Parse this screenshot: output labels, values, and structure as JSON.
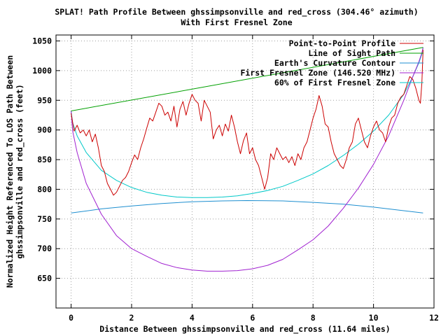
{
  "chart_data": {
    "type": "line",
    "title": "SPLAT! Path Profile Between ghssimpsonville and red_cross (304.46° azimuth)",
    "subtitle": "With First Fresnel Zone",
    "xlabel": "Distance Between ghssimpsonville and red_cross (11.64 miles)",
    "ylabel_line1": "Normalized Height Referenced To LOS Path Between",
    "ylabel_line2": "ghssimpsonville and red_cross (feet)",
    "xlim": [
      -0.5,
      12
    ],
    "ylim": [
      600,
      1060
    ],
    "x_ticks": [
      "0",
      "2",
      "4",
      "6",
      "8",
      "10",
      "12"
    ],
    "x_tick_values": [
      0,
      2,
      4,
      6,
      8,
      10,
      12
    ],
    "y_ticks": [
      "650",
      "700",
      "750",
      "800",
      "850",
      "900",
      "950",
      "1000",
      "1050"
    ],
    "y_tick_values": [
      650,
      700,
      750,
      800,
      850,
      900,
      950,
      1000,
      1050
    ],
    "grid": true,
    "legend_position": "top-right",
    "path_length_miles": 11.64,
    "series": [
      {
        "name": "Point-to-Point Profile",
        "color": "#cc0000",
        "x": [
          0,
          0.1,
          0.2,
          0.3,
          0.4,
          0.5,
          0.6,
          0.7,
          0.8,
          0.9,
          1.0,
          1.1,
          1.2,
          1.3,
          1.4,
          1.5,
          1.6,
          1.7,
          1.8,
          1.9,
          2.0,
          2.1,
          2.2,
          2.3,
          2.4,
          2.5,
          2.6,
          2.7,
          2.8,
          2.9,
          3.0,
          3.1,
          3.2,
          3.3,
          3.4,
          3.5,
          3.6,
          3.7,
          3.8,
          3.9,
          4.0,
          4.1,
          4.2,
          4.3,
          4.4,
          4.5,
          4.6,
          4.7,
          4.8,
          4.9,
          5.0,
          5.1,
          5.2,
          5.3,
          5.4,
          5.5,
          5.6,
          5.7,
          5.8,
          5.9,
          6.0,
          6.1,
          6.2,
          6.3,
          6.4,
          6.5,
          6.6,
          6.7,
          6.8,
          6.9,
          7.0,
          7.1,
          7.2,
          7.3,
          7.4,
          7.5,
          7.6,
          7.7,
          7.8,
          7.9,
          8.0,
          8.1,
          8.2,
          8.3,
          8.4,
          8.5,
          8.6,
          8.7,
          8.8,
          8.9,
          9.0,
          9.1,
          9.2,
          9.3,
          9.4,
          9.5,
          9.6,
          9.7,
          9.8,
          9.9,
          10.0,
          10.1,
          10.2,
          10.3,
          10.4,
          10.5,
          10.6,
          10.7,
          10.8,
          10.9,
          11.0,
          11.1,
          11.2,
          11.3,
          11.4,
          11.5,
          11.55,
          11.6,
          11.64
        ],
        "y": [
          928,
          898,
          908,
          895,
          900,
          890,
          900,
          880,
          893,
          870,
          840,
          830,
          810,
          800,
          790,
          795,
          805,
          815,
          820,
          830,
          845,
          858,
          850,
          870,
          885,
          903,
          920,
          915,
          930,
          945,
          940,
          925,
          930,
          915,
          940,
          905,
          935,
          948,
          925,
          945,
          960,
          950,
          945,
          915,
          950,
          940,
          930,
          885,
          900,
          908,
          890,
          910,
          898,
          925,
          905,
          880,
          860,
          882,
          895,
          860,
          870,
          850,
          840,
          820,
          800,
          820,
          860,
          850,
          870,
          860,
          850,
          855,
          845,
          855,
          840,
          860,
          850,
          870,
          880,
          900,
          920,
          935,
          958,
          940,
          910,
          905,
          880,
          860,
          850,
          840,
          835,
          850,
          870,
          880,
          910,
          920,
          900,
          880,
          870,
          890,
          905,
          915,
          900,
          895,
          880,
          905,
          920,
          925,
          945,
          955,
          960,
          975,
          990,
          985,
          970,
          950,
          945,
          980,
          1035
        ]
      },
      {
        "name": "Line of Sight Path",
        "color": "#00a000",
        "x": [
          0,
          11.64
        ],
        "y": [
          932,
          1039
        ]
      },
      {
        "name": "Earth's Curvature Contour",
        "color": "#1e8fd0",
        "x": [
          0,
          1,
          2,
          3,
          4,
          5,
          5.82,
          7,
          8,
          9,
          10,
          11,
          11.64
        ],
        "y": [
          760,
          767,
          772,
          776,
          779,
          780.5,
          781,
          780.5,
          778,
          775,
          770,
          764,
          760
        ]
      },
      {
        "name": "First Fresnel Zone (146.520 MHz)",
        "color": "#a020d0",
        "x": [
          0,
          0.05,
          0.2,
          0.5,
          1,
          1.5,
          2,
          2.5,
          3,
          3.5,
          4,
          4.5,
          5,
          5.5,
          6,
          6.5,
          7,
          7.5,
          8,
          8.5,
          9,
          9.5,
          10,
          10.5,
          11,
          11.3,
          11.5,
          11.6,
          11.64
        ],
        "y": [
          932,
          898,
          862,
          810,
          758,
          722,
          700,
          687,
          675,
          668,
          664,
          662,
          662,
          663,
          666,
          672,
          682,
          698,
          715,
          738,
          768,
          802,
          842,
          890,
          950,
          990,
          1015,
          1030,
          1039
        ]
      },
      {
        "name": "60% of First Fresnel Zone",
        "color": "#00c8c8",
        "x": [
          0,
          0.05,
          0.2,
          0.5,
          1,
          1.5,
          2,
          2.5,
          3,
          3.5,
          4,
          4.5,
          5,
          5.5,
          6,
          6.5,
          7,
          7.5,
          8,
          8.5,
          9,
          9.5,
          10,
          10.5,
          11,
          11.3,
          11.5,
          11.6,
          11.64
        ],
        "y": [
          932,
          912,
          890,
          862,
          832,
          815,
          803,
          795,
          790,
          787,
          786,
          786,
          787,
          789,
          793,
          798,
          805,
          815,
          826,
          840,
          857,
          876,
          898,
          925,
          960,
          990,
          1013,
          1028,
          1039
        ]
      }
    ]
  }
}
